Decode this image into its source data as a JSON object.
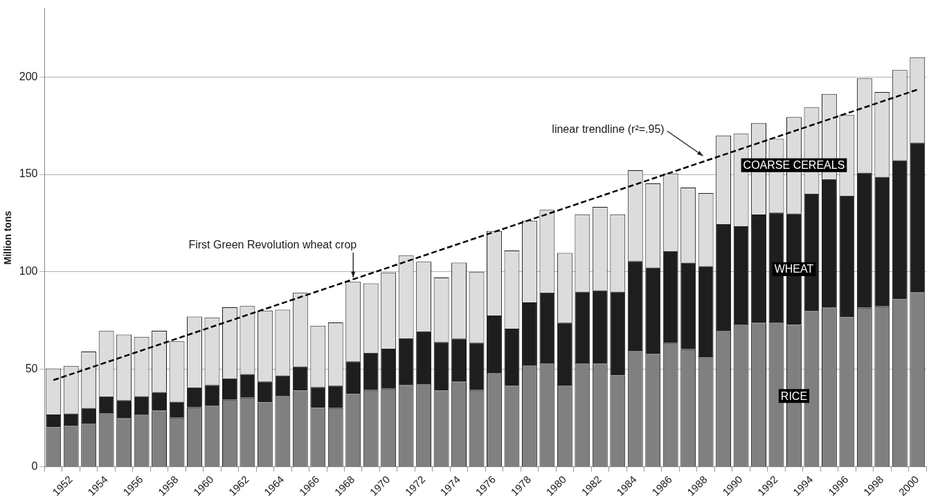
{
  "chart_data": {
    "type": "bar",
    "stacked": true,
    "ylabel": "Million tons",
    "categories": [
      null,
      "1952",
      null,
      "1954",
      null,
      "1956",
      null,
      "1958",
      null,
      "1960",
      null,
      "1962",
      null,
      "1964",
      null,
      "1966",
      null,
      "1968",
      null,
      "1970",
      null,
      "1972",
      null,
      "1974",
      null,
      "1976",
      null,
      "1978",
      null,
      "1980",
      null,
      "1982",
      null,
      "1984",
      null,
      "1986",
      null,
      "1988",
      null,
      "1990",
      null,
      "1992",
      null,
      "1994",
      null,
      "1996",
      null,
      "1998",
      null,
      "2000"
    ],
    "series": [
      {
        "name": "RICE",
        "color": "#808080",
        "values": [
          20.3,
          21.1,
          22.6,
          27.9,
          25,
          27.2,
          28.8,
          25.2,
          30.5,
          31.4,
          34.4,
          35.5,
          33.1,
          36.8,
          39.1,
          30.2,
          30.1,
          37.3,
          39.4,
          40.1,
          42,
          42.8,
          39.1,
          43.8,
          39.4,
          48.5,
          41.7,
          52.4,
          53.5,
          42.1,
          53.5,
          53,
          46.9,
          59.9,
          58,
          63.5,
          60.3,
          56.7,
          70.2,
          73.4,
          74,
          74.4,
          72.8,
          80,
          81.8,
          76.7,
          81.6,
          82.3,
          86,
          89.6
        ]
      },
      {
        "name": "WHEAT",
        "color": "#1e1e1e",
        "values": [
          6.6,
          6.3,
          7.6,
          8.3,
          9.2,
          9.1,
          9.6,
          8.2,
          10.3,
          10.6,
          11,
          12.1,
          10.7,
          10.1,
          12.4,
          10.8,
          11.6,
          16.8,
          19.1,
          20.5,
          24,
          26.7,
          24.9,
          22,
          24.3,
          29.1,
          29.2,
          32,
          35.9,
          31.9,
          36.4,
          37.6,
          43,
          45.7,
          44.3,
          47.2,
          44.5,
          46.3,
          54.3,
          50,
          55.4,
          56,
          57.2,
          60.2,
          65.8,
          62.4,
          69.3,
          66.5,
          71.3,
          76.7
        ]
      },
      {
        "name": "COARSE CEREALS",
        "color": "#dcdcdc",
        "values": [
          23.6,
          24.4,
          29,
          33.5,
          33.7,
          30.4,
          31.4,
          31,
          36.3,
          34.6,
          36.5,
          34.9,
          36.4,
          33.7,
          37.9,
          31.4,
          32.4,
          40.8,
          35.6,
          39.1,
          42.4,
          35.7,
          33.1,
          39,
          36.2,
          43.4,
          40.1,
          41.9,
          42.4,
          35.7,
          39.6,
          42.7,
          39.6,
          46.6,
          43.1,
          39.8,
          38.5,
          37.4,
          45.5,
          47.5,
          47,
          37.9,
          49.4,
          44.2,
          43.7,
          41.4,
          48.4,
          43.5,
          46.2,
          43.8
        ]
      },
      {
        "type": "line",
        "color": "#000000",
        "line_style": "dashed",
        "values": [
          44.5,
          null,
          null,
          null,
          null,
          null,
          null,
          null,
          null,
          null,
          null,
          null,
          null,
          null,
          null,
          null,
          null,
          null,
          null,
          null,
          null,
          null,
          null,
          null,
          null,
          null,
          null,
          null,
          null,
          null,
          null,
          null,
          null,
          null,
          null,
          null,
          null,
          null,
          null,
          null,
          null,
          null,
          null,
          null,
          null,
          null,
          null,
          null,
          null,
          193.5
        ]
      }
    ],
    "ylim": [
      0,
      235
    ],
    "yticks": [
      0,
      50,
      100,
      150,
      200
    ],
    "grid": "y",
    "legend": false,
    "annotations": [
      {
        "text": "First Green Revolution wheat crop",
        "x": "1968",
        "y": 95
      },
      "linear trendline (r²=.95)"
    ]
  }
}
